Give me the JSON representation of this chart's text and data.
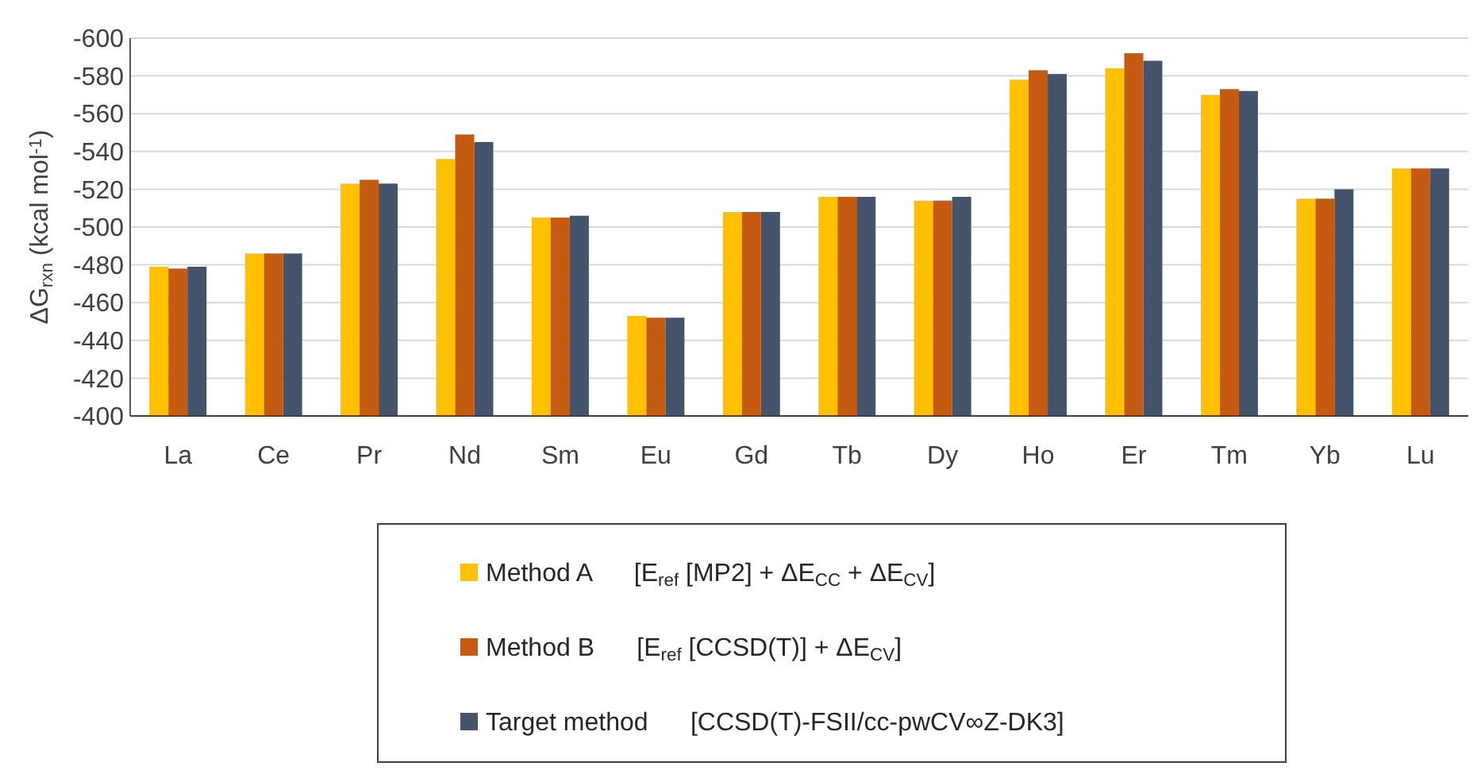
{
  "chart_data": {
    "type": "bar",
    "ylabel": "ΔG$_{rxn}$ (kcal mol$^{-1}$)",
    "categories": [
      "La",
      "Ce",
      "Pr",
      "Nd",
      "Sm",
      "Eu",
      "Gd",
      "Tb",
      "Dy",
      "Ho",
      "Er",
      "Tm",
      "Yb",
      "Lu"
    ],
    "series": [
      {
        "name": "Method A      [E$_{ref}$ [MP2] + ΔE$_{CC}$ + ΔE$_{CV}$]",
        "color": "#ffc000",
        "values": [
          -479,
          -486,
          -523,
          -536,
          -505,
          -453,
          -508,
          -516,
          -514,
          -578,
          -584,
          -570,
          -515,
          -531
        ]
      },
      {
        "name": "Method B      [E$_{ref}$ [CCSD(T)] + ΔE$_{CV}$]",
        "color": "#c55a11",
        "values": [
          -478,
          -486,
          -525,
          -549,
          -505,
          -452,
          -508,
          -516,
          -514,
          -583,
          -592,
          -573,
          -515,
          -531
        ]
      },
      {
        "name": "Target method      [CCSD(T)-FSII/cc-pwCV∞Z-DK3]",
        "color": "#44546a",
        "values": [
          -479,
          -486,
          -523,
          -545,
          -506,
          -452,
          -508,
          -516,
          -516,
          -581,
          -588,
          -572,
          -520,
          -531
        ]
      }
    ],
    "ylim": [
      -400,
      -600
    ],
    "yticks": [
      -400,
      -420,
      -440,
      -460,
      -480,
      -500,
      -520,
      -540,
      -560,
      -580,
      -600
    ],
    "grid": "y",
    "legend": "bottom"
  }
}
